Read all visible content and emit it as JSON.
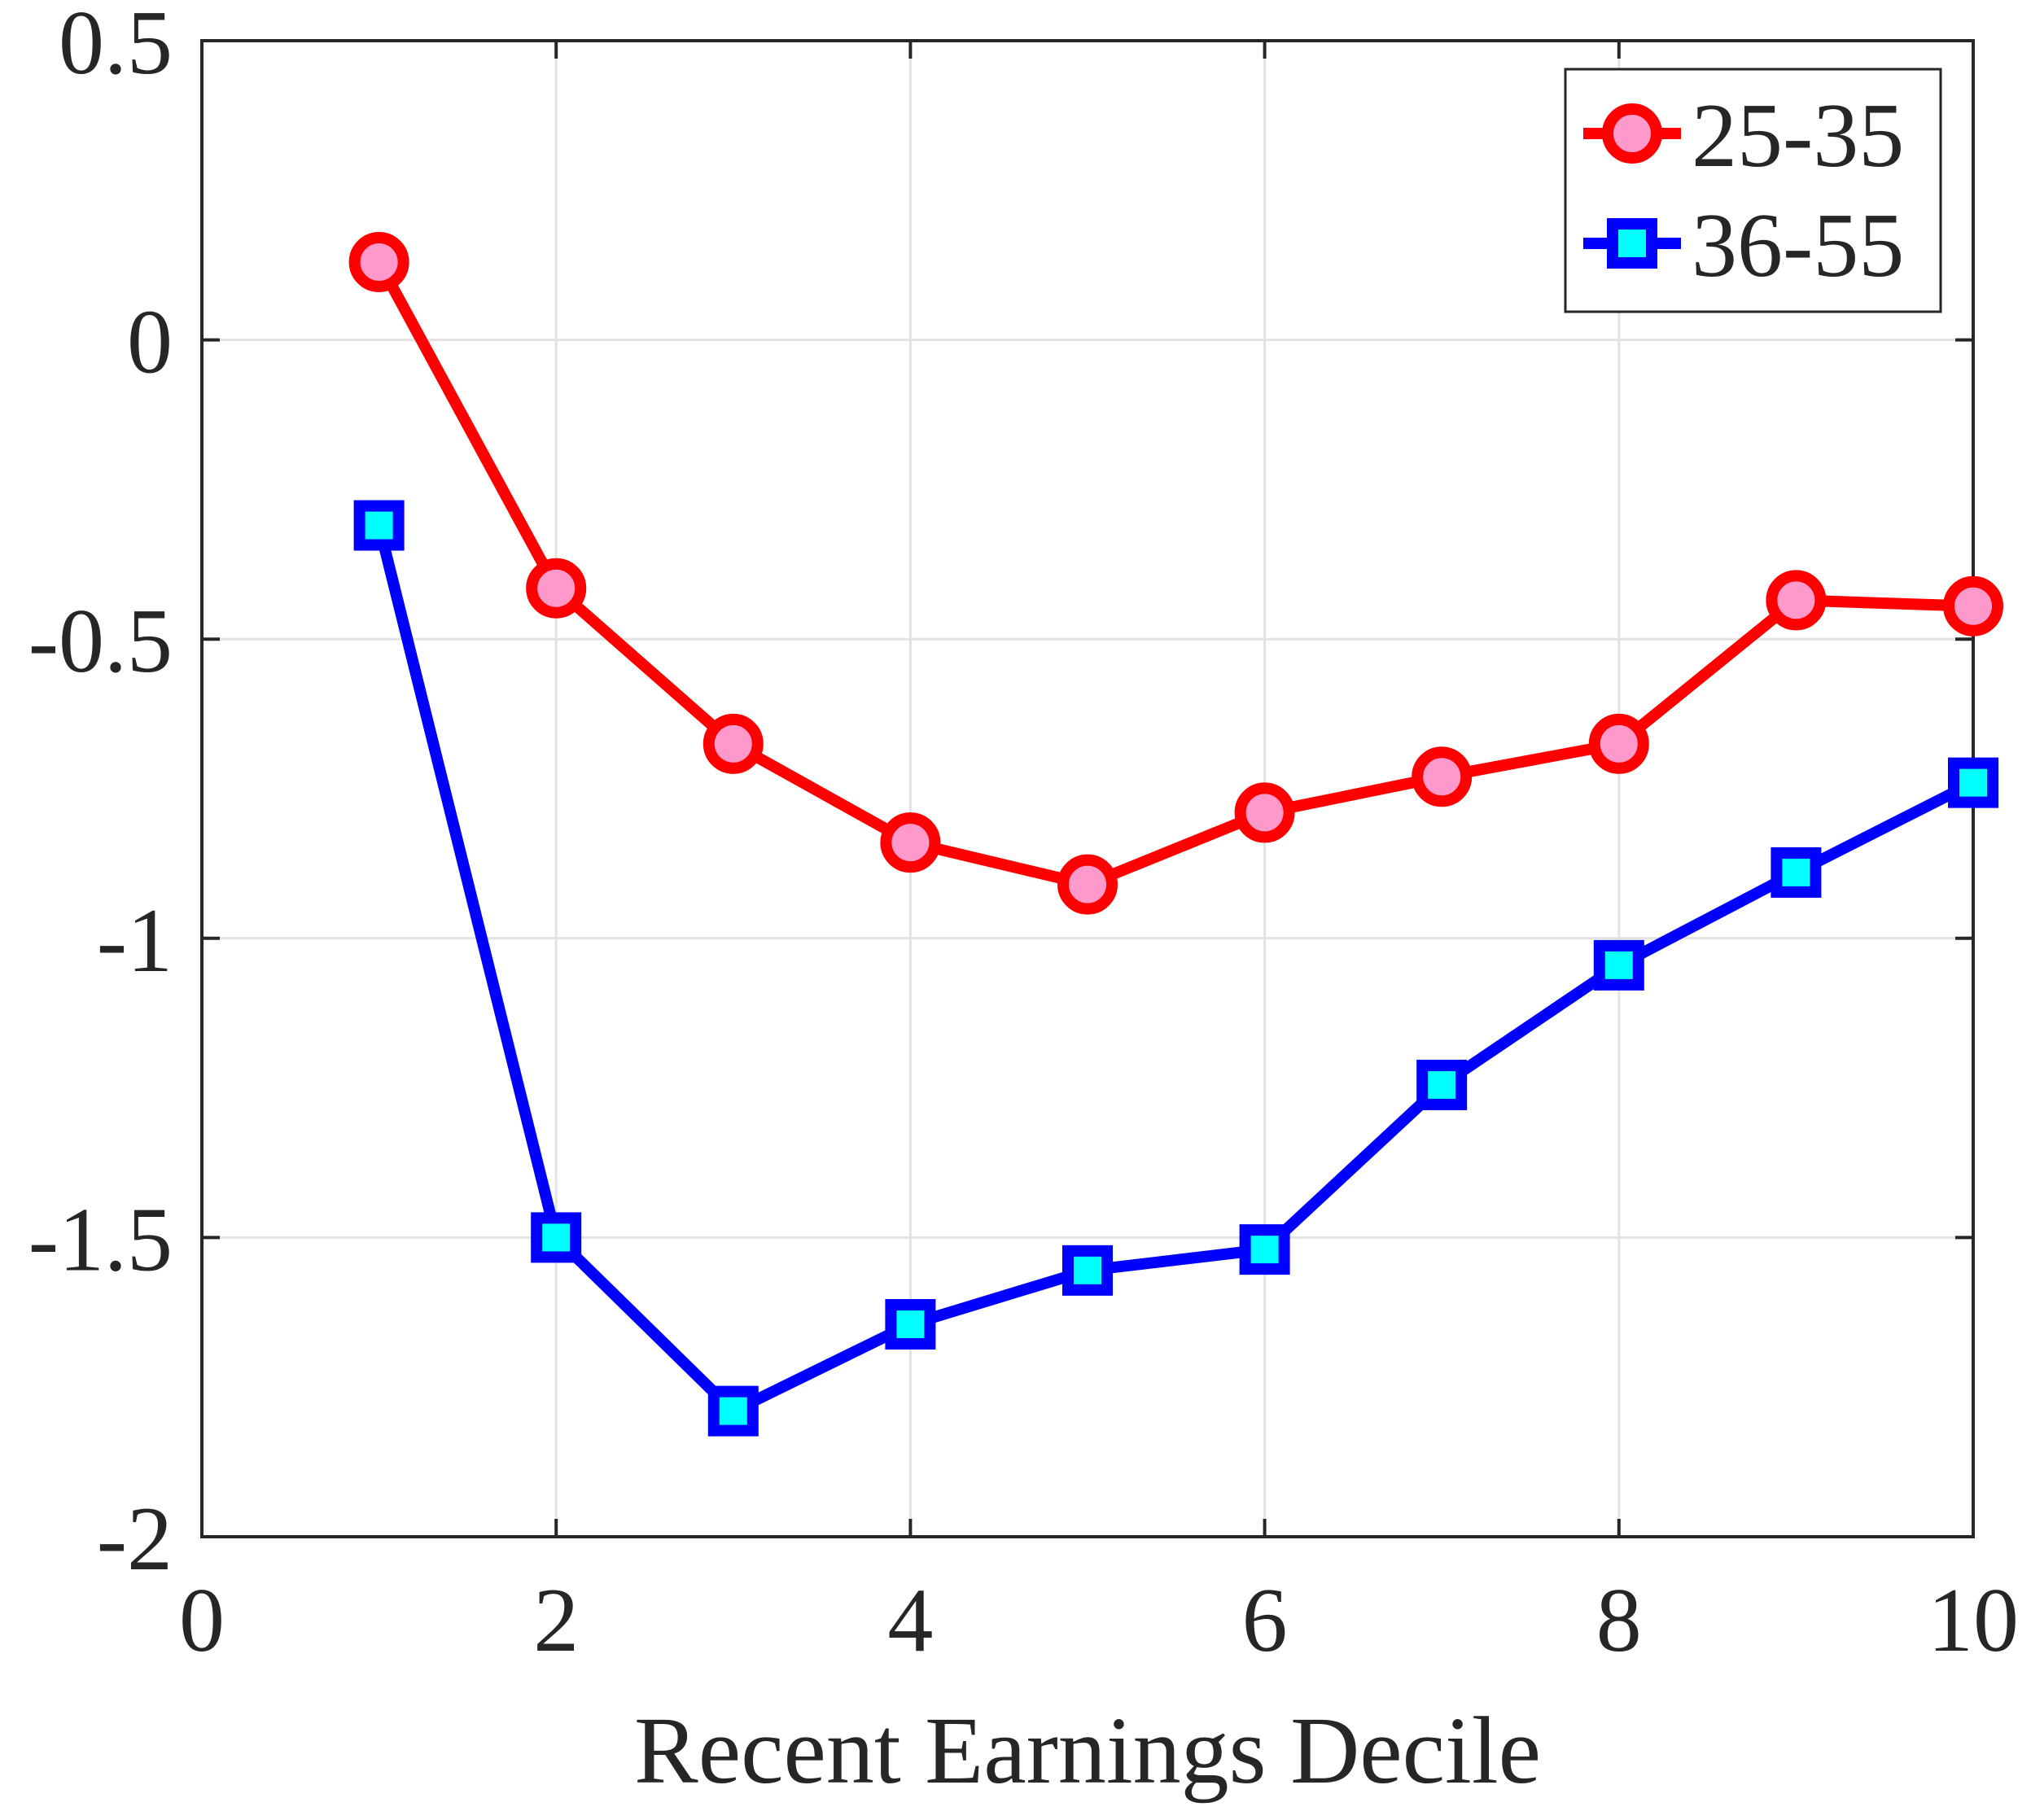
{
  "chart_data": {
    "type": "line",
    "title": "",
    "xlabel": "Recent Earnings Decile",
    "ylabel": "",
    "xlim": [
      0,
      10
    ],
    "ylim": [
      -2,
      0.5
    ],
    "xticks": [
      0,
      2,
      4,
      6,
      8,
      10
    ],
    "yticks": [
      0.5,
      0,
      -0.5,
      -1,
      -1.5,
      -2
    ],
    "grid": true,
    "legend_position": "top-right",
    "x": [
      1,
      2,
      3,
      4,
      5,
      6,
      7,
      8,
      9,
      10
    ],
    "series": [
      {
        "name": "25-35",
        "values": [
          0.13,
          -0.415,
          -0.675,
          -0.84,
          -0.91,
          -0.79,
          -0.73,
          -0.675,
          -0.435,
          -0.445
        ],
        "line_color": "#ff0000",
        "marker": "circle",
        "marker_fill": "#ff99cc"
      },
      {
        "name": "36-55",
        "values": [
          -0.31,
          -1.5,
          -1.79,
          -1.645,
          -1.555,
          -1.52,
          -1.245,
          -1.045,
          -0.89,
          -0.74
        ],
        "line_color": "#0000ff",
        "marker": "square",
        "marker_fill": "#00ffff"
      }
    ]
  }
}
